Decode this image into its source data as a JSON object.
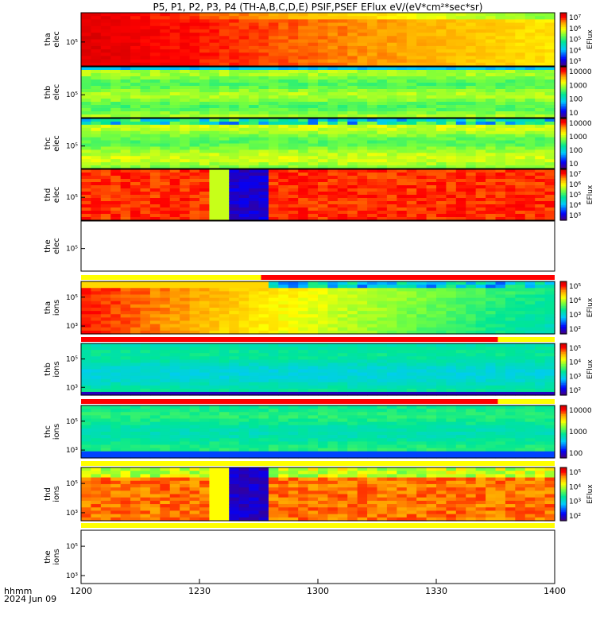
{
  "title": "P5, P1, P2, P3, P4 (TH-A,B,C,D,E) PSIF,PSEF EFlux eV/(eV*cm²*sec*sr)",
  "time_axis": {
    "label_1": "hhmm",
    "label_2": "2024 Jun 09",
    "ticks": [
      "1200",
      "1230",
      "1300",
      "1330",
      "1400"
    ]
  },
  "chart_data": {
    "type": "heatmap",
    "x_range": [
      "12:00",
      "14:00"
    ],
    "panels": [
      {
        "probe": "tha",
        "species": "elec",
        "y_ticks": [
          "10⁵"
        ],
        "has_data": true,
        "profile": "elec_a",
        "colorbar": {
          "label": "EFlux",
          "ticks": [
            "10⁷",
            "10⁶",
            "10⁵",
            "10⁴",
            "10³"
          ]
        },
        "status_bar": []
      },
      {
        "probe": "thb",
        "species": "elec",
        "y_ticks": [
          "10⁵"
        ],
        "has_data": true,
        "profile": "elec_b",
        "colorbar": {
          "label": "",
          "ticks": [
            "10000",
            "1000",
            "100",
            "10"
          ]
        },
        "status_bar": []
      },
      {
        "probe": "thc",
        "species": "elec",
        "y_ticks": [
          "10⁵"
        ],
        "has_data": true,
        "profile": "elec_c",
        "colorbar": {
          "label": "",
          "ticks": [
            "10000",
            "1000",
            "100",
            "10"
          ]
        },
        "status_bar": []
      },
      {
        "probe": "thd",
        "species": "elec",
        "y_ticks": [
          "10⁵"
        ],
        "has_data": true,
        "profile": "elec_d",
        "colorbar": {
          "label": "EFlux",
          "ticks": [
            "10⁷",
            "10⁶",
            "10⁵",
            "10⁴",
            "10³"
          ]
        },
        "status_bar": []
      },
      {
        "probe": "the",
        "species": "elec",
        "y_ticks": [
          "10⁵"
        ],
        "has_data": false,
        "profile": "none",
        "colorbar": null,
        "status_bar": [
          {
            "from": 0.0,
            "to": 0.38,
            "color": "#ffff00"
          },
          {
            "from": 0.38,
            "to": 1.0,
            "color": "#ff0000"
          }
        ]
      },
      {
        "probe": "tha",
        "species": "ions",
        "y_ticks": [
          "10⁵",
          "10³"
        ],
        "has_data": true,
        "profile": "ions_a",
        "colorbar": {
          "label": "EFlux",
          "ticks": [
            "10⁵",
            "10⁴",
            "10³",
            "10²"
          ]
        },
        "status_bar": [
          {
            "from": 0.0,
            "to": 0.88,
            "color": "#ff0000"
          },
          {
            "from": 0.88,
            "to": 1.0,
            "color": "#ffff00"
          }
        ]
      },
      {
        "probe": "thb",
        "species": "ions",
        "y_ticks": [
          "10⁵",
          "10³"
        ],
        "has_data": true,
        "profile": "ions_b",
        "colorbar": {
          "label": "EFlux",
          "ticks": [
            "10⁵",
            "10⁴",
            "10³",
            "10²"
          ]
        },
        "status_bar": [
          {
            "from": 0.0,
            "to": 0.88,
            "color": "#ff0000"
          },
          {
            "from": 0.88,
            "to": 1.0,
            "color": "#ffff00"
          }
        ]
      },
      {
        "probe": "thc",
        "species": "ions",
        "y_ticks": [
          "10⁵",
          "10³"
        ],
        "has_data": true,
        "profile": "ions_c",
        "colorbar": {
          "label": "",
          "ticks": [
            "10000",
            "1000",
            "100"
          ]
        },
        "status_bar": [
          {
            "from": 0.0,
            "to": 1.0,
            "color": "#ffff00"
          }
        ]
      },
      {
        "probe": "thd",
        "species": "ions",
        "y_ticks": [
          "10⁵",
          "10³"
        ],
        "has_data": true,
        "profile": "ions_d",
        "colorbar": {
          "label": "EFlux",
          "ticks": [
            "10⁵",
            "10⁴",
            "10³",
            "10²"
          ]
        },
        "status_bar": [
          {
            "from": 0.0,
            "to": 1.0,
            "color": "#ffff00"
          }
        ]
      },
      {
        "probe": "the",
        "species": "ions",
        "y_ticks": [
          "10⁵",
          "10³"
        ],
        "has_data": false,
        "profile": "none",
        "colorbar": null,
        "status_bar": []
      }
    ]
  }
}
